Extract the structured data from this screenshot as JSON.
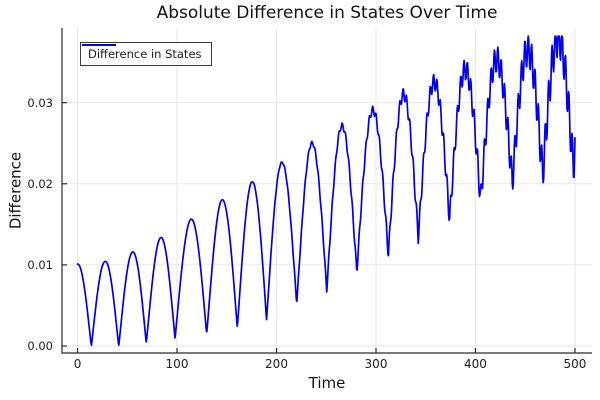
{
  "chart_data": {
    "type": "line",
    "title": "Absolute Difference in States Over Time",
    "xlabel": "Time",
    "ylabel": "Difference",
    "grid": true,
    "frame_style": "left-bottom-spines",
    "legend": {
      "position": "top-left",
      "entries": [
        {
          "label": "Difference in States",
          "color": "#0000ee"
        }
      ]
    },
    "x_ticks": [
      {
        "label": "0",
        "value": 0
      },
      {
        "label": "100",
        "value": 100
      },
      {
        "label": "200",
        "value": 200
      },
      {
        "label": "300",
        "value": 300
      },
      {
        "label": "400",
        "value": 400
      },
      {
        "label": "500",
        "value": 500
      }
    ],
    "y_ticks": [
      {
        "label": "0.00",
        "value": 0.0
      },
      {
        "label": "0.01",
        "value": 0.01
      },
      {
        "label": "0.02",
        "value": 0.02
      },
      {
        "label": "0.03",
        "value": 0.03
      }
    ],
    "xlim": [
      -15.6,
      517.1
    ],
    "ylim": [
      -0.00086,
      0.0392
    ],
    "colors": {
      "grid": "#e6e6e6",
      "spine": "#2a2a2a",
      "tick_text": "#202020"
    },
    "series": [
      {
        "name": "Difference in States",
        "color": "#0000ee",
        "t_range": [
          0,
          500
        ],
        "sample_step": 0.5,
        "y_clip_max": 0.0382,
        "shape_exponent": 1.05,
        "peak_points": [
          [
            0,
            0.0101
          ],
          [
            26.9,
            0.0104
          ],
          [
            55.5,
            0.0116
          ],
          [
            85.6,
            0.0135
          ],
          [
            114.8,
            0.0157
          ],
          [
            144.9,
            0.018
          ],
          [
            176.1,
            0.0203
          ],
          [
            206.2,
            0.0227
          ],
          [
            236.4,
            0.0251
          ],
          [
            266.5,
            0.0272
          ],
          [
            297.3,
            0.0291
          ],
          [
            326.8,
            0.031
          ],
          [
            357.6,
            0.0325
          ],
          [
            387.7,
            0.034
          ],
          [
            417.9,
            0.0352
          ],
          [
            449.7,
            0.0363
          ],
          [
            481,
            0.038
          ],
          [
            500,
            0.0386
          ]
        ],
        "trough_points": [
          [
            13.9,
            0.0
          ],
          [
            41.4,
            0.0
          ],
          [
            69.1,
            0.0004
          ],
          [
            98,
            0.001
          ],
          [
            129.8,
            0.0015
          ],
          [
            160.6,
            0.0023
          ],
          [
            190,
            0.0033
          ],
          [
            220.3,
            0.0053
          ],
          [
            250.5,
            0.0069
          ],
          [
            280.7,
            0.0092
          ],
          [
            312.4,
            0.0113
          ],
          [
            342.5,
            0.0135
          ],
          [
            374,
            0.0157
          ],
          [
            405.2,
            0.018
          ],
          [
            437,
            0.0203
          ],
          [
            467.5,
            0.0212
          ],
          [
            500,
            0.0222
          ]
        ],
        "trough_times": [
          -13.6,
          13.9,
          41.4,
          69.1,
          98,
          129.8,
          160.6,
          190,
          220.3,
          250.5,
          280.7,
          312.4,
          342.5,
          374,
          405.2,
          437,
          467.5,
          498.3,
          529.1
        ],
        "jitter": {
          "amplitude": 0.0024,
          "period": 3.4,
          "ramp_start": 140,
          "ramp_length": 340,
          "ramp_power": 2
        }
      }
    ]
  }
}
